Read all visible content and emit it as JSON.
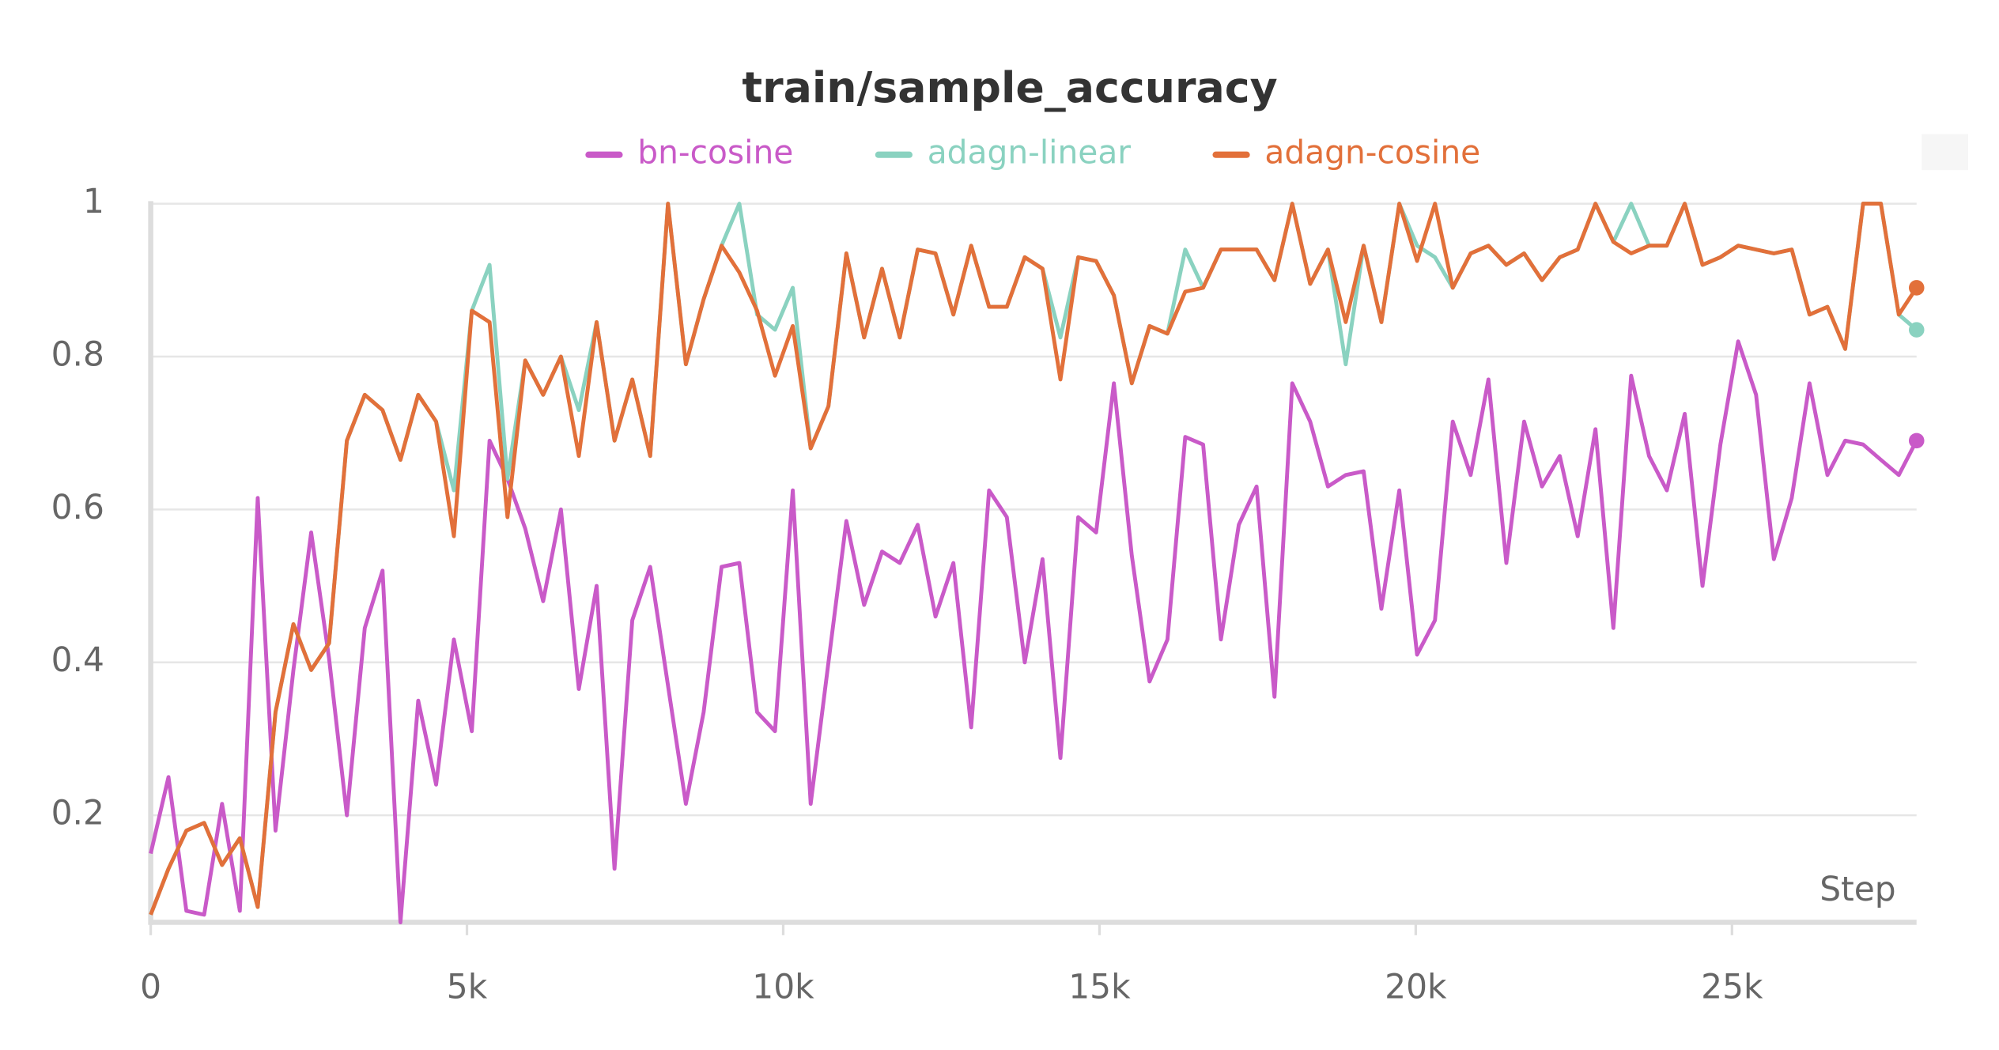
{
  "chart_data": {
    "type": "line",
    "title": "train/sample_accuracy",
    "x_label": "Step",
    "x": [
      0,
      282,
      564,
      846,
      1128,
      1410,
      1692,
      1974,
      2256,
      2538,
      2820,
      3102,
      3384,
      3666,
      3948,
      4230,
      4512,
      4794,
      5076,
      5358,
      5640,
      5922,
      6204,
      6486,
      6768,
      7050,
      7332,
      7614,
      7896,
      8178,
      8460,
      8742,
      9024,
      9306,
      9588,
      9870,
      10152,
      10434,
      10716,
      10998,
      11280,
      11562,
      11844,
      12126,
      12408,
      12690,
      12972,
      13254,
      13536,
      13818,
      14100,
      14382,
      14664,
      14946,
      15228,
      15510,
      15792,
      16074,
      16356,
      16638,
      16920,
      17202,
      17484,
      17766,
      18048,
      18330,
      18612,
      18894,
      19176,
      19458,
      19740,
      20022,
      20304,
      20586,
      20868,
      21150,
      21432,
      21714,
      21996,
      22278,
      22560,
      22842,
      23124,
      23406,
      23688,
      23970,
      24252,
      24534,
      24816,
      25098,
      25380,
      25662,
      25944,
      26226,
      26508,
      26790,
      27072,
      27354,
      27636,
      27918
    ],
    "series": [
      {
        "name": "bn-cosine",
        "color": "#c95ac8",
        "values": [
          0.15,
          0.25,
          0.075,
          0.07,
          0.215,
          0.075,
          0.615,
          0.18,
          0.39,
          0.57,
          0.405,
          0.2,
          0.445,
          0.52,
          0.06,
          0.35,
          0.24,
          0.43,
          0.31,
          0.69,
          0.64,
          0.575,
          0.48,
          0.6,
          0.365,
          0.5,
          0.13,
          0.455,
          0.525,
          0.37,
          0.215,
          0.335,
          0.525,
          0.53,
          0.335,
          0.31,
          0.625,
          0.215,
          0.4,
          0.585,
          0.475,
          0.545,
          0.53,
          0.58,
          0.46,
          0.53,
          0.315,
          0.625,
          0.59,
          0.4,
          0.535,
          0.275,
          0.59,
          0.57,
          0.765,
          0.54,
          0.375,
          0.43,
          0.695,
          0.685,
          0.43,
          0.58,
          0.63,
          0.355,
          0.765,
          0.715,
          0.63,
          0.645,
          0.65,
          0.47,
          0.625,
          0.41,
          0.455,
          0.715,
          0.645,
          0.77,
          0.53,
          0.715,
          0.63,
          0.67,
          0.565,
          0.705,
          0.445,
          0.775,
          0.67,
          0.625,
          0.725,
          0.5,
          0.685,
          0.82,
          0.75,
          0.535,
          0.615,
          0.765,
          0.645,
          0.69,
          0.685,
          0.665,
          0.645,
          0.69
        ]
      },
      {
        "name": "adagn-linear",
        "color": "#8ad2c0",
        "values": [
          0.07,
          0.13,
          0.18,
          0.19,
          0.135,
          0.17,
          0.08,
          0.335,
          0.45,
          0.39,
          0.425,
          0.69,
          0.75,
          0.73,
          0.665,
          0.75,
          0.715,
          0.625,
          0.86,
          0.92,
          0.64,
          0.795,
          0.75,
          0.8,
          0.73,
          0.845,
          0.69,
          0.77,
          0.67,
          1.0,
          0.79,
          0.875,
          0.945,
          1.0,
          0.855,
          0.835,
          0.89,
          0.68,
          0.735,
          0.935,
          0.825,
          0.915,
          0.825,
          0.94,
          0.935,
          0.855,
          0.945,
          0.865,
          0.865,
          0.93,
          0.915,
          0.825,
          0.93,
          0.925,
          0.88,
          0.765,
          0.84,
          0.83,
          0.94,
          0.89,
          0.94,
          0.94,
          0.94,
          0.9,
          1.0,
          0.895,
          0.94,
          0.79,
          0.945,
          0.845,
          1.0,
          0.945,
          0.93,
          0.89,
          0.935,
          0.945,
          0.92,
          0.935,
          0.9,
          0.93,
          0.94,
          1.0,
          0.95,
          1.0,
          0.945,
          0.945,
          1.0,
          0.92,
          0.93,
          0.945,
          0.94,
          0.935,
          0.94,
          0.855,
          0.865,
          0.81,
          1.0,
          1.0,
          0.855,
          0.835
        ]
      },
      {
        "name": "adagn-cosine",
        "color": "#e2703a",
        "values": [
          0.07,
          0.13,
          0.18,
          0.19,
          0.135,
          0.17,
          0.08,
          0.335,
          0.45,
          0.39,
          0.425,
          0.69,
          0.75,
          0.73,
          0.665,
          0.75,
          0.715,
          0.565,
          0.86,
          0.845,
          0.59,
          0.795,
          0.75,
          0.8,
          0.67,
          0.845,
          0.69,
          0.77,
          0.67,
          1.0,
          0.79,
          0.875,
          0.945,
          0.91,
          0.86,
          0.775,
          0.84,
          0.68,
          0.735,
          0.935,
          0.825,
          0.915,
          0.825,
          0.94,
          0.935,
          0.855,
          0.945,
          0.865,
          0.865,
          0.93,
          0.915,
          0.77,
          0.93,
          0.925,
          0.88,
          0.765,
          0.84,
          0.83,
          0.885,
          0.89,
          0.94,
          0.94,
          0.94,
          0.9,
          1.0,
          0.895,
          0.94,
          0.845,
          0.945,
          0.845,
          1.0,
          0.925,
          1.0,
          0.89,
          0.935,
          0.945,
          0.92,
          0.935,
          0.9,
          0.93,
          0.94,
          1.0,
          0.95,
          0.935,
          0.945,
          0.945,
          1.0,
          0.92,
          0.93,
          0.945,
          0.94,
          0.935,
          0.94,
          0.855,
          0.865,
          0.81,
          1.0,
          1.0,
          0.855,
          0.89
        ]
      }
    ],
    "xlim": [
      0,
      27918
    ],
    "xticks": [
      0,
      {
        "value": 5000,
        "label": "5k"
      },
      {
        "value": 10000,
        "label": "10k"
      },
      {
        "value": 15000,
        "label": "15k"
      },
      {
        "value": 20000,
        "label": "20k"
      },
      {
        "value": 25000,
        "label": "25k"
      }
    ],
    "ylim": [
      0.06,
      1
    ],
    "yticks": [
      0.2,
      0.4,
      0.6,
      0.8,
      1
    ],
    "grid": true
  }
}
